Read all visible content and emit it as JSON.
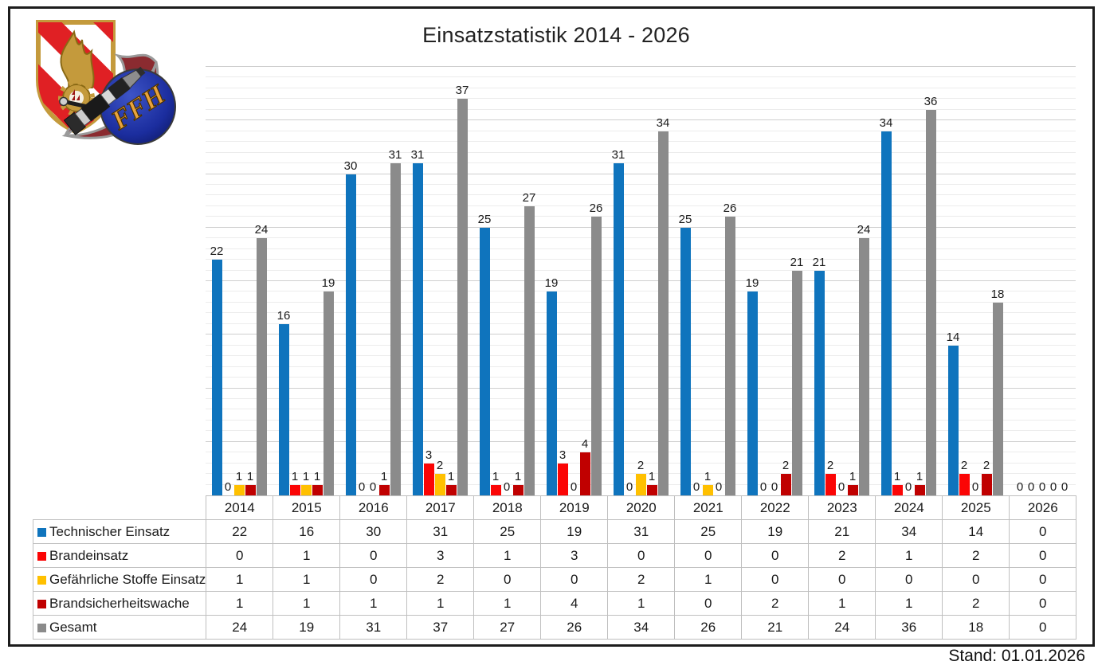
{
  "title": "Einsatzstatistik 2014 - 2026",
  "footer": {
    "stand_label": "Stand: 01.01.2026"
  },
  "logo": {
    "monogram": "FFH"
  },
  "colors": {
    "technischer_einsatz": "#0f74bd",
    "brandeinsatz": "#fb0505",
    "gefaehrliche_stoffe": "#ffc000",
    "brandsicherheitswache": "#c00000",
    "gesamt": "#8b8b8b",
    "grid_minor": "#ececec",
    "grid_major": "#cfcfcf",
    "table_border": "#bfbfbf"
  },
  "chart_data": {
    "type": "bar",
    "title": "Einsatzstatistik 2014 - 2026",
    "categories": [
      "2014",
      "2015",
      "2016",
      "2017",
      "2018",
      "2019",
      "2020",
      "2021",
      "2022",
      "2023",
      "2024",
      "2025",
      "2026"
    ],
    "series": [
      {
        "name": "Technischer Einsatz",
        "color": "#0f74bd",
        "values": [
          22,
          16,
          30,
          31,
          25,
          19,
          31,
          25,
          19,
          21,
          34,
          14,
          0
        ]
      },
      {
        "name": "Brandeinsatz",
        "color": "#fb0505",
        "values": [
          0,
          1,
          0,
          3,
          1,
          3,
          0,
          0,
          0,
          2,
          1,
          2,
          0
        ]
      },
      {
        "name": "Gefährliche Stoffe Einsatz",
        "color": "#ffc000",
        "values": [
          1,
          1,
          0,
          2,
          0,
          0,
          2,
          1,
          0,
          0,
          0,
          0,
          0
        ]
      },
      {
        "name": "Brandsicherheitswache",
        "color": "#c00000",
        "values": [
          1,
          1,
          1,
          1,
          1,
          4,
          1,
          0,
          2,
          1,
          1,
          2,
          0
        ]
      },
      {
        "name": "Gesamt",
        "color": "#8b8b8b",
        "values": [
          24,
          19,
          31,
          37,
          27,
          26,
          34,
          26,
          21,
          24,
          36,
          18,
          0
        ]
      }
    ],
    "xlabel": "",
    "ylabel": "",
    "ylim": [
      0,
      40
    ],
    "major_unit": 5,
    "minor_unit": 1,
    "grid": true,
    "data_labels": true,
    "legend_position": "table-left",
    "y_axis_labels_visible": false
  }
}
